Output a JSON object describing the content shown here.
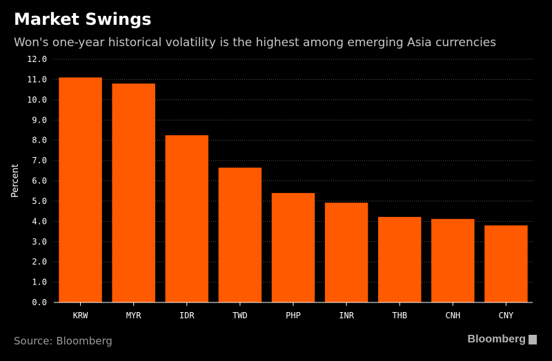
{
  "header": {
    "title": "Market Swings",
    "subtitle": "Won's one-year historical volatility is the highest among emerging Asia currencies"
  },
  "footer": {
    "source": "Source: Bloomberg",
    "brand": "Bloomberg"
  },
  "colors": {
    "bar": "#ff5a00",
    "grid": "#5a5a5a",
    "background": "#000000"
  },
  "chart_data": {
    "type": "bar",
    "title": "Market Swings",
    "subtitle": "Won's one-year historical volatility is the highest among emerging Asia currencies",
    "xlabel": "",
    "ylabel": "Percent",
    "ylim": [
      0,
      12
    ],
    "yticks": [
      "0.0",
      "1.0",
      "2.0",
      "3.0",
      "4.0",
      "5.0",
      "6.0",
      "7.0",
      "8.0",
      "9.0",
      "10.0",
      "11.0",
      "12.0"
    ],
    "categories": [
      "KRW",
      "MYR",
      "IDR",
      "TWD",
      "PHP",
      "INR",
      "THB",
      "CNH",
      "CNY"
    ],
    "values": [
      11.1,
      10.8,
      8.25,
      6.65,
      5.4,
      4.92,
      4.22,
      4.12,
      3.8
    ],
    "grid": true,
    "legend": "none"
  }
}
